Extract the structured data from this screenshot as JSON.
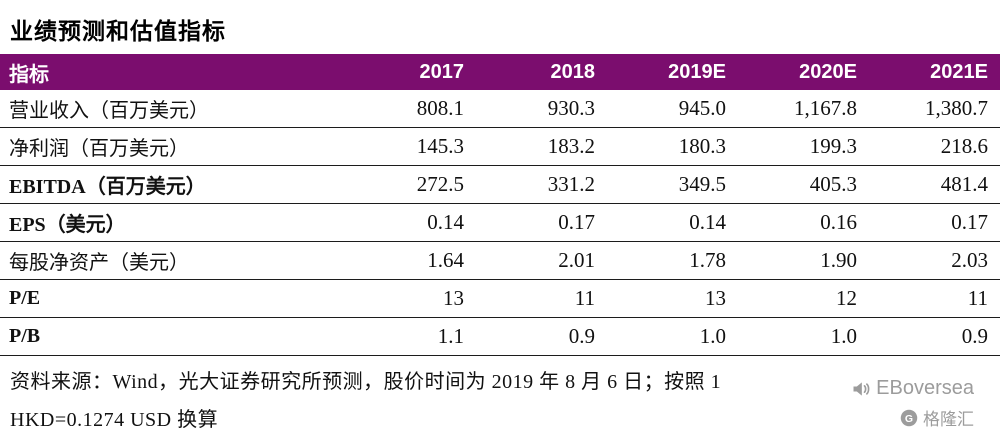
{
  "title": "业绩预测和估值指标",
  "table": {
    "header": [
      "指标",
      "2017",
      "2018",
      "2019E",
      "2020E",
      "2021E"
    ],
    "rows": [
      {
        "label": "营业收入（百万美元）",
        "values": [
          "808.1",
          "930.3",
          "945.0",
          "1,167.8",
          "1,380.7"
        ]
      },
      {
        "label": "净利润（百万美元）",
        "values": [
          "145.3",
          "183.2",
          "180.3",
          "199.3",
          "218.6"
        ]
      },
      {
        "label": "EBITDA（百万美元）",
        "values": [
          "272.5",
          "331.2",
          "349.5",
          "405.3",
          "481.4"
        ]
      },
      {
        "label": "EPS（美元）",
        "values": [
          "0.14",
          "0.17",
          "0.14",
          "0.16",
          "0.17"
        ]
      },
      {
        "label": "每股净资产（美元）",
        "values": [
          "1.64",
          "2.01",
          "1.78",
          "1.90",
          "2.03"
        ]
      },
      {
        "label": "P/E",
        "values": [
          "13",
          "11",
          "13",
          "12",
          "11"
        ]
      },
      {
        "label": "P/B",
        "values": [
          "1.1",
          "0.9",
          "1.0",
          "1.0",
          "0.9"
        ]
      }
    ]
  },
  "footnote": {
    "line1": "资料来源：Wind，光大证券研究所预测，股价时间为 2019 年 8 月 6 日；按照 1",
    "line2": "HKD=0.1274 USD 换算"
  },
  "watermark": {
    "brand": "EBoversea",
    "community": "格隆汇"
  },
  "colors": {
    "header_bg": "#7B0D6E",
    "header_text": "#FFFFFF",
    "row_border": "#1C1C1C",
    "watermark_gray": "#9C9C9C"
  },
  "chart_data": {
    "type": "table",
    "title": "业绩预测和估值指标",
    "columns": [
      "指标",
      "2017",
      "2018",
      "2019E",
      "2020E",
      "2021E"
    ],
    "rows": [
      [
        "营业收入（百万美元）",
        808.1,
        930.3,
        945.0,
        1167.8,
        1380.7
      ],
      [
        "净利润（百万美元）",
        145.3,
        183.2,
        180.3,
        199.3,
        218.6
      ],
      [
        "EBITDA（百万美元）",
        272.5,
        331.2,
        349.5,
        405.3,
        481.4
      ],
      [
        "EPS（美元）",
        0.14,
        0.17,
        0.14,
        0.16,
        0.17
      ],
      [
        "每股净资产（美元）",
        1.64,
        2.01,
        1.78,
        1.9,
        2.03
      ],
      [
        "P/E",
        13,
        11,
        13,
        12,
        11
      ],
      [
        "P/B",
        1.1,
        0.9,
        1.0,
        1.0,
        0.9
      ]
    ],
    "source_note": "资料来源：Wind，光大证券研究所预测，股价时间为 2019 年 8 月 6 日；按照 1 HKD=0.1274 USD 换算"
  }
}
